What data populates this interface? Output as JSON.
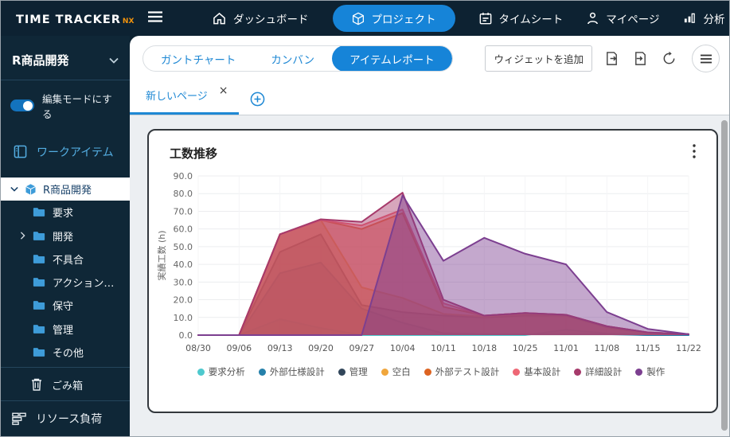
{
  "nav": {
    "logo_title": "TIME TRACKER",
    "logo_suffix": "NX",
    "items": [
      {
        "label": "ダッシュボード",
        "icon": "home",
        "active": false
      },
      {
        "label": "プロジェクト",
        "icon": "cube",
        "active": true
      },
      {
        "label": "タイムシート",
        "icon": "calendar",
        "active": false
      },
      {
        "label": "マイページ",
        "icon": "person",
        "active": false
      },
      {
        "label": "分析",
        "icon": "bar-chart",
        "active": false
      }
    ]
  },
  "sidebar": {
    "project_title": "R商品開発",
    "edit_mode_label": "編集モードにする",
    "edit_mode_on": true,
    "work_items_label": "ワークアイテム",
    "tree_root_label": "R商品開発",
    "folders": [
      "要求",
      "開発",
      "不具合",
      "アクション…",
      "保守",
      "管理",
      "その他"
    ],
    "trash_label": "ごみ箱",
    "resource_load_label": "リソース負荷"
  },
  "toolbar": {
    "view_tabs": [
      {
        "label": "ガントチャート",
        "active": false
      },
      {
        "label": "カンバン",
        "active": false
      },
      {
        "label": "アイテムレポート",
        "active": true
      }
    ],
    "add_widget_label": "ウィジェットを追加"
  },
  "page_tabs": {
    "active_tab": "新しいページ",
    "close_glyph": "×"
  },
  "accent_color": "#1684D8",
  "chart_data": {
    "type": "area",
    "title": "工数推移",
    "ylabel": "実績工数 (h)",
    "ylim": [
      0,
      90
    ],
    "ytick_step": 10,
    "grid": true,
    "legend_position": "bottom",
    "fill_opacity": 0.45,
    "x": [
      "08/30",
      "09/06",
      "09/13",
      "09/20",
      "09/27",
      "10/04",
      "10/11",
      "10/18",
      "10/25",
      "11/01",
      "11/08",
      "11/15",
      "11/22"
    ],
    "series": [
      {
        "name": "要求分析",
        "color": "#4EC9CE",
        "values": [
          0,
          0,
          9,
          4,
          0,
          0,
          0,
          0,
          0,
          3,
          1,
          0,
          0
        ]
      },
      {
        "name": "外部仕様設計",
        "color": "#2580AA",
        "values": [
          0,
          0,
          35,
          41,
          15,
          7,
          1,
          0.5,
          0.5,
          0.5,
          0.5,
          0,
          0
        ]
      },
      {
        "name": "管理",
        "color": "#31465A",
        "values": [
          0,
          0,
          47,
          57,
          17,
          13,
          11,
          10,
          11,
          11,
          4.5,
          1,
          0.5
        ]
      },
      {
        "name": "空白",
        "color": "#F0A63C",
        "values": [
          0,
          0,
          57,
          65,
          27,
          21,
          12,
          10.5,
          12,
          11.5,
          5,
          1,
          0.5
        ]
      },
      {
        "name": "外部テスト設計",
        "color": "#DD6321",
        "values": [
          0,
          0,
          57,
          65,
          60,
          69,
          16,
          11,
          12.5,
          11.5,
          5,
          1.5,
          0.5
        ]
      },
      {
        "name": "基本設計",
        "color": "#EE6775",
        "values": [
          0,
          0,
          57,
          65,
          62,
          71,
          18,
          11,
          12.5,
          11.5,
          5,
          1.5,
          0.5
        ]
      },
      {
        "name": "詳細設計",
        "color": "#A63A6B",
        "values": [
          0,
          0,
          57,
          65.5,
          64,
          80.5,
          20,
          11,
          12.5,
          11.5,
          5,
          1.5,
          0.5
        ]
      },
      {
        "name": "製作",
        "color": "#7C3F90",
        "values": [
          0,
          0,
          0,
          0,
          0,
          79,
          42,
          55,
          46,
          40,
          13,
          3.5,
          0.5
        ]
      }
    ]
  }
}
